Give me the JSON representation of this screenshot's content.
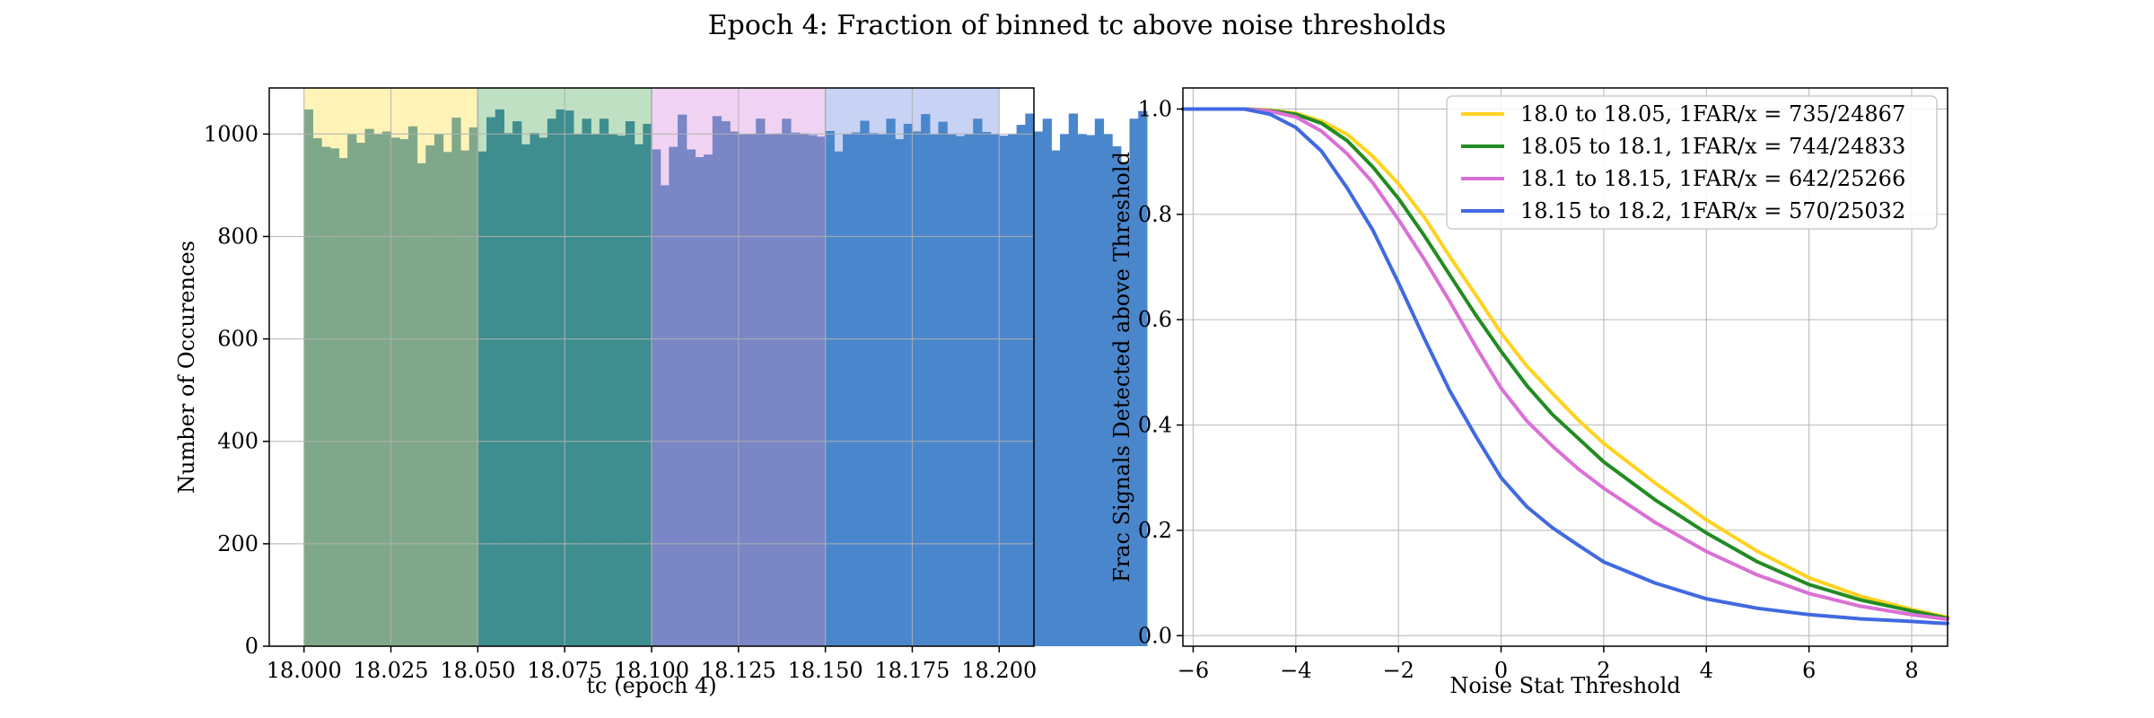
{
  "figure": {
    "suptitle": "Epoch 4: Fraction of binned tc above noise thresholds"
  },
  "chart_data": [
    {
      "type": "bar",
      "subtype": "histogram",
      "xlabel": "tc (epoch 4)",
      "ylabel": "Number of Occurences",
      "xlim": [
        17.99,
        18.21
      ],
      "ylim": [
        0,
        1090
      ],
      "xticks": [
        "18.000",
        "18.025",
        "18.050",
        "18.075",
        "18.100",
        "18.125",
        "18.150",
        "18.175",
        "18.200"
      ],
      "yticks": [
        "0",
        "200",
        "400",
        "600",
        "800",
        "1000"
      ],
      "grid": true,
      "bin_start": 18.0,
      "bin_width": 0.0025,
      "values": [
        1048,
        992,
        975,
        972,
        953,
        1000,
        983,
        1010,
        1000,
        1005,
        993,
        990,
        1015,
        943,
        978,
        1000,
        965,
        1032,
        968,
        1013,
        966,
        1033,
        1048,
        1002,
        1025,
        980,
        1002,
        993,
        1030,
        1048,
        1046,
        1000,
        1030,
        1000,
        1030,
        1000,
        997,
        1025,
        980,
        1020,
        970,
        900,
        975,
        1038,
        970,
        955,
        960,
        1035,
        1025,
        1005,
        1000,
        1000,
        1030,
        1000,
        1001,
        1030,
        1003,
        1001,
        998,
        995,
        1006,
        966,
        1000,
        1003,
        1026,
        1002,
        1000,
        1030,
        990,
        1020,
        1005,
        1039,
        1000,
        1024,
        1000,
        996,
        1000,
        1030,
        1004,
        1000,
        997,
        1000,
        1018,
        1040,
        1005,
        1030,
        968,
        1000,
        1040,
        1000,
        998,
        1030,
        1000,
        976,
        945,
        1030,
        1045
      ],
      "bin_ranges": [
        {
          "from": 18.0,
          "to": 18.05,
          "bar_color": "#7fa88a",
          "band_color": "#fff3b8"
        },
        {
          "from": 18.05,
          "to": 18.1,
          "bar_color": "#3e8e90",
          "band_color": "#bfe0c3"
        },
        {
          "from": 18.1,
          "to": 18.15,
          "bar_color": "#7a86c6",
          "band_color": "#f0d2f2"
        },
        {
          "from": 18.15,
          "to": 18.2,
          "bar_color": "#4a86cc",
          "band_color": "#c7d2f4"
        }
      ]
    },
    {
      "type": "line",
      "xlabel": "Noise Stat Threshold",
      "ylabel": "Frac Signals Detected above Threshold",
      "xlim": [
        -6.2,
        8.7
      ],
      "ylim": [
        -0.02,
        1.04
      ],
      "xticks": [
        -6,
        -4,
        -2,
        0,
        2,
        4,
        6,
        8
      ],
      "xtick_labels": [
        "−6",
        "−4",
        "−2",
        "0",
        "2",
        "4",
        "6",
        "8"
      ],
      "yticks": [
        0.0,
        0.2,
        0.4,
        0.6,
        0.8,
        1.0
      ],
      "ytick_labels": [
        "0.0",
        "0.2",
        "0.4",
        "0.6",
        "0.8",
        "1.0"
      ],
      "grid": true,
      "legend_position": "top-right",
      "x": [
        -6.2,
        -5,
        -4.5,
        -4,
        -3.5,
        -3,
        -2.5,
        -2,
        -1.5,
        -1,
        -0.5,
        0,
        0.5,
        1,
        1.5,
        2,
        3,
        4,
        5,
        6,
        7,
        8,
        8.7
      ],
      "series": [
        {
          "name": "18.0 to 18.05, 1FAR/x = 735/24867",
          "color": "#ffd21f",
          "values": [
            1.0,
            1.0,
            0.998,
            0.992,
            0.977,
            0.952,
            0.91,
            0.858,
            0.795,
            0.72,
            0.648,
            0.575,
            0.512,
            0.46,
            0.41,
            0.365,
            0.29,
            0.22,
            0.16,
            0.11,
            0.075,
            0.05,
            0.035
          ]
        },
        {
          "name": "18.05 to 18.1, 1FAR/x = 744/24833",
          "color": "#228b22",
          "values": [
            1.0,
            1.0,
            0.997,
            0.99,
            0.973,
            0.94,
            0.89,
            0.83,
            0.76,
            0.685,
            0.61,
            0.54,
            0.475,
            0.42,
            0.375,
            0.33,
            0.258,
            0.195,
            0.14,
            0.097,
            0.068,
            0.047,
            0.033
          ]
        },
        {
          "name": "18.1 to 18.15, 1FAR/x = 642/25266",
          "color": "#da70d6",
          "values": [
            1.0,
            1.0,
            0.996,
            0.985,
            0.958,
            0.915,
            0.86,
            0.79,
            0.715,
            0.635,
            0.55,
            0.47,
            0.408,
            0.36,
            0.317,
            0.28,
            0.215,
            0.16,
            0.115,
            0.08,
            0.056,
            0.04,
            0.031
          ]
        },
        {
          "name": "18.15 to 18.2, 1FAR/x = 570/25032",
          "color": "#4169e1",
          "values": [
            1.0,
            1.0,
            0.99,
            0.965,
            0.92,
            0.85,
            0.77,
            0.67,
            0.565,
            0.465,
            0.38,
            0.3,
            0.245,
            0.205,
            0.172,
            0.14,
            0.1,
            0.07,
            0.052,
            0.04,
            0.032,
            0.027,
            0.023
          ]
        }
      ]
    }
  ]
}
